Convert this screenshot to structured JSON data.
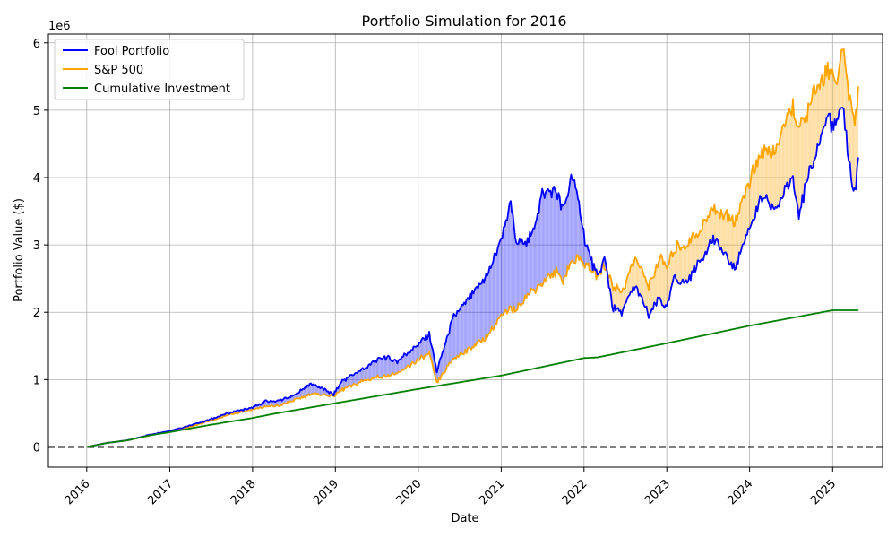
{
  "chart_data": {
    "type": "line",
    "title": "Portfolio Simulation for 2016",
    "xlabel": "Date",
    "ylabel": "Portfolio Value ($)",
    "y_offset_label": "1e6",
    "x_tick_labels": [
      "2016",
      "2017",
      "2018",
      "2019",
      "2020",
      "2021",
      "2022",
      "2023",
      "2024",
      "2025"
    ],
    "y_tick_labels": [
      "0",
      "1",
      "2",
      "3",
      "4",
      "5",
      "6"
    ],
    "xlim": [
      "2015-07-16",
      "2025-08-09"
    ],
    "ylim": [
      -300000,
      6130000
    ],
    "grid": true,
    "legend_position": "top-left",
    "reference_line": {
      "y": 0,
      "style": "dashed",
      "color": "#000000"
    },
    "fill_between": [
      {
        "upper": "Fool Portfolio",
        "lower": "S&P 500",
        "color": "#0000ff",
        "opacity": 0.25
      },
      {
        "upper": "S&P 500",
        "lower": "Fool Portfolio",
        "color": "#ffa500",
        "opacity": 0.25
      }
    ],
    "series": [
      {
        "name": "Fool Portfolio",
        "color": "#0000ff",
        "points": [
          [
            "2016-01-01",
            0
          ],
          [
            "2016-04-01",
            60000
          ],
          [
            "2016-07-01",
            100000
          ],
          [
            "2016-10-01",
            180000
          ],
          [
            "2017-01-01",
            240000
          ],
          [
            "2017-04-01",
            320000
          ],
          [
            "2017-07-01",
            410000
          ],
          [
            "2017-10-01",
            520000
          ],
          [
            "2018-01-01",
            580000
          ],
          [
            "2018-03-01",
            680000
          ],
          [
            "2018-05-01",
            690000
          ],
          [
            "2018-07-01",
            760000
          ],
          [
            "2018-09-15",
            940000
          ],
          [
            "2018-11-01",
            880000
          ],
          [
            "2018-12-24",
            780000
          ],
          [
            "2019-02-01",
            980000
          ],
          [
            "2019-05-01",
            1150000
          ],
          [
            "2019-08-01",
            1350000
          ],
          [
            "2019-10-01",
            1270000
          ],
          [
            "2020-01-01",
            1520000
          ],
          [
            "2020-02-19",
            1680000
          ],
          [
            "2020-03-23",
            1120000
          ],
          [
            "2020-06-01",
            1900000
          ],
          [
            "2020-09-01",
            2300000
          ],
          [
            "2020-11-01",
            2550000
          ],
          [
            "2021-01-01",
            3100000
          ],
          [
            "2021-02-12",
            3600000
          ],
          [
            "2021-03-08",
            3000000
          ],
          [
            "2021-05-12",
            3100000
          ],
          [
            "2021-07-01",
            3750000
          ],
          [
            "2021-09-01",
            3800000
          ],
          [
            "2021-10-01",
            3500000
          ],
          [
            "2021-11-10",
            4050000
          ],
          [
            "2021-12-15",
            3500000
          ],
          [
            "2022-01-10",
            3000000
          ],
          [
            "2022-03-01",
            2500000
          ],
          [
            "2022-04-01",
            2800000
          ],
          [
            "2022-05-10",
            2050000
          ],
          [
            "2022-06-16",
            2000000
          ],
          [
            "2022-08-15",
            2400000
          ],
          [
            "2022-10-13",
            1950000
          ],
          [
            "2022-12-01",
            2200000
          ],
          [
            "2023-01-01",
            2050000
          ],
          [
            "2023-02-01",
            2500000
          ],
          [
            "2023-04-01",
            2450000
          ],
          [
            "2023-06-01",
            2800000
          ],
          [
            "2023-07-25",
            3100000
          ],
          [
            "2023-10-27",
            2650000
          ],
          [
            "2023-12-31",
            3300000
          ],
          [
            "2024-03-01",
            3700000
          ],
          [
            "2024-04-19",
            3500000
          ],
          [
            "2024-07-10",
            4000000
          ],
          [
            "2024-08-05",
            3500000
          ],
          [
            "2024-10-01",
            4150000
          ],
          [
            "2024-12-10",
            4900000
          ],
          [
            "2025-01-10",
            4750000
          ],
          [
            "2025-02-19",
            5050000
          ],
          [
            "2025-03-13",
            4200000
          ],
          [
            "2025-04-08",
            3750000
          ],
          [
            "2025-04-24",
            4300000
          ]
        ]
      },
      {
        "name": "S&P 500",
        "color": "#ffa500",
        "points": [
          [
            "2016-01-01",
            0
          ],
          [
            "2016-04-01",
            60000
          ],
          [
            "2016-07-01",
            100000
          ],
          [
            "2016-10-01",
            170000
          ],
          [
            "2017-01-01",
            230000
          ],
          [
            "2017-04-01",
            300000
          ],
          [
            "2017-07-01",
            390000
          ],
          [
            "2017-10-01",
            490000
          ],
          [
            "2018-01-01",
            560000
          ],
          [
            "2018-03-01",
            600000
          ],
          [
            "2018-05-01",
            620000
          ],
          [
            "2018-07-01",
            690000
          ],
          [
            "2018-09-15",
            790000
          ],
          [
            "2018-11-01",
            780000
          ],
          [
            "2018-12-24",
            760000
          ],
          [
            "2019-02-01",
            850000
          ],
          [
            "2019-05-01",
            980000
          ],
          [
            "2019-08-01",
            1050000
          ],
          [
            "2019-10-01",
            1080000
          ],
          [
            "2020-01-01",
            1300000
          ],
          [
            "2020-02-19",
            1380000
          ],
          [
            "2020-03-23",
            950000
          ],
          [
            "2020-06-01",
            1300000
          ],
          [
            "2020-09-01",
            1500000
          ],
          [
            "2020-11-01",
            1650000
          ],
          [
            "2021-01-01",
            1950000
          ],
          [
            "2021-02-12",
            2050000
          ],
          [
            "2021-03-08",
            2050000
          ],
          [
            "2021-05-12",
            2300000
          ],
          [
            "2021-07-01",
            2450000
          ],
          [
            "2021-09-01",
            2600000
          ],
          [
            "2021-10-01",
            2500000
          ],
          [
            "2021-11-10",
            2750000
          ],
          [
            "2021-12-15",
            2800000
          ],
          [
            "2022-01-10",
            2700000
          ],
          [
            "2022-03-01",
            2550000
          ],
          [
            "2022-04-01",
            2700000
          ],
          [
            "2022-05-10",
            2400000
          ],
          [
            "2022-06-16",
            2300000
          ],
          [
            "2022-08-15",
            2800000
          ],
          [
            "2022-10-13",
            2400000
          ],
          [
            "2022-12-01",
            2800000
          ],
          [
            "2023-01-01",
            2650000
          ],
          [
            "2023-02-01",
            2950000
          ],
          [
            "2023-04-01",
            3000000
          ],
          [
            "2023-06-01",
            3250000
          ],
          [
            "2023-07-25",
            3550000
          ],
          [
            "2023-10-27",
            3350000
          ],
          [
            "2023-12-31",
            3950000
          ],
          [
            "2024-03-01",
            4400000
          ],
          [
            "2024-04-19",
            4350000
          ],
          [
            "2024-07-10",
            5050000
          ],
          [
            "2024-08-05",
            4700000
          ],
          [
            "2024-10-01",
            5150000
          ],
          [
            "2024-12-10",
            5650000
          ],
          [
            "2025-01-10",
            5400000
          ],
          [
            "2025-02-19",
            5850000
          ],
          [
            "2025-03-13",
            5250000
          ],
          [
            "2025-04-08",
            4800000
          ],
          [
            "2025-04-24",
            5350000
          ]
        ]
      },
      {
        "name": "Cumulative Investment",
        "color": "#008000",
        "points": [
          [
            "2016-01-01",
            0
          ],
          [
            "2016-04-01",
            60000
          ],
          [
            "2016-07-01",
            100000
          ],
          [
            "2016-10-01",
            170000
          ],
          [
            "2017-01-01",
            220000
          ],
          [
            "2017-07-01",
            330000
          ],
          [
            "2018-01-01",
            430000
          ],
          [
            "2018-04-01",
            490000
          ],
          [
            "2019-01-01",
            650000
          ],
          [
            "2020-01-01",
            860000
          ],
          [
            "2021-01-01",
            1060000
          ],
          [
            "2022-01-01",
            1320000
          ],
          [
            "2022-03-01",
            1330000
          ],
          [
            "2023-01-01",
            1540000
          ],
          [
            "2024-01-01",
            1800000
          ],
          [
            "2025-01-01",
            2030000
          ],
          [
            "2025-04-24",
            2030000
          ]
        ]
      }
    ]
  }
}
